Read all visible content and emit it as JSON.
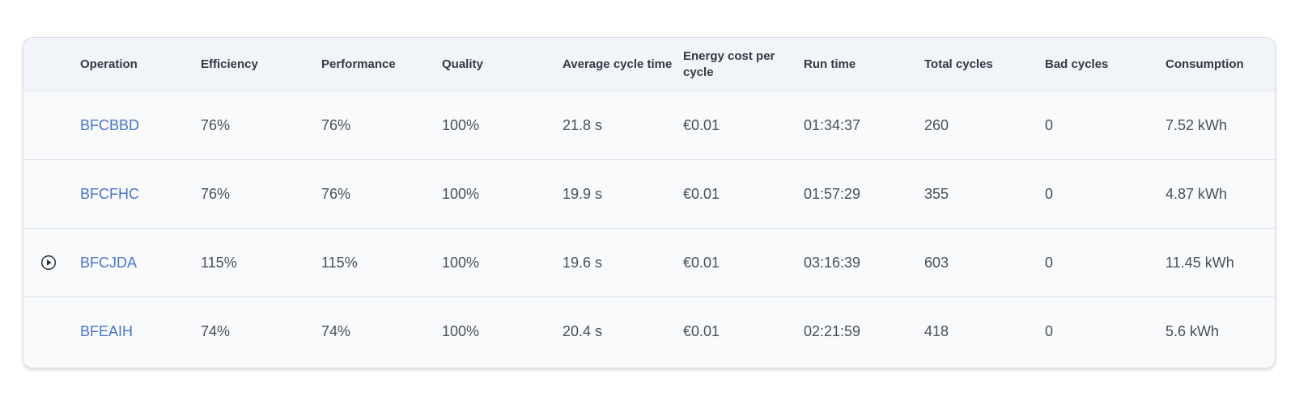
{
  "table": {
    "columns": [
      "",
      "Operation",
      "Efficiency",
      "Performance",
      "Quality",
      "Average cycle time",
      "Energy cost per cycle",
      "Run time",
      "Total cycles",
      "Bad cycles",
      "Consumption"
    ],
    "rows": [
      {
        "icon": "",
        "operation": "BFCBBD",
        "efficiency": "76%",
        "performance": "76%",
        "quality": "100%",
        "avg_cycle_time": "21.8 s",
        "energy_cost": "€0.01",
        "run_time": "01:34:37",
        "total_cycles": "260",
        "bad_cycles": "0",
        "consumption": "7.52 kWh"
      },
      {
        "icon": "",
        "operation": "BFCFHC",
        "efficiency": "76%",
        "performance": "76%",
        "quality": "100%",
        "avg_cycle_time": "19.9 s",
        "energy_cost": "€0.01",
        "run_time": "01:57:29",
        "total_cycles": "355",
        "bad_cycles": "0",
        "consumption": "4.87 kWh"
      },
      {
        "icon": "play-circle-icon",
        "operation": "BFCJDA",
        "efficiency": "115%",
        "performance": "115%",
        "quality": "100%",
        "avg_cycle_time": "19.6 s",
        "energy_cost": "€0.01",
        "run_time": "03:16:39",
        "total_cycles": "603",
        "bad_cycles": "0",
        "consumption": "11.45 kWh"
      },
      {
        "icon": "",
        "operation": "BFEAIH",
        "efficiency": "74%",
        "performance": "74%",
        "quality": "100%",
        "avg_cycle_time": "20.4 s",
        "energy_cost": "€0.01",
        "run_time": "02:21:59",
        "total_cycles": "418",
        "bad_cycles": "0",
        "consumption": "5.6 kWh"
      }
    ]
  },
  "colors": {
    "link": "#4a74c9",
    "header_bg": "#f1f4f8",
    "row_bg": "#f8fafc"
  }
}
